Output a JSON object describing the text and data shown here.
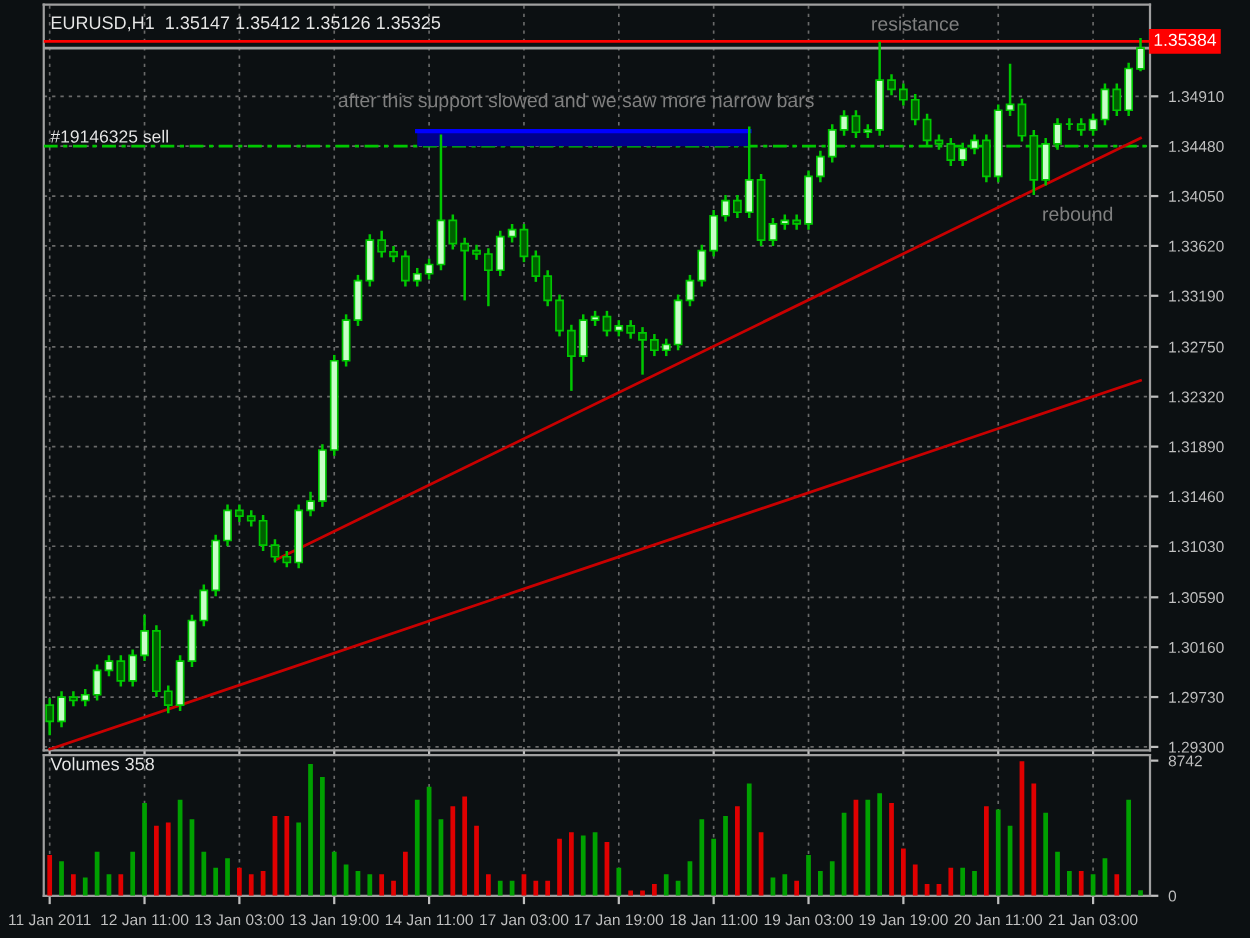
{
  "chart_data": [
    {
      "type": "candlestick",
      "title": "EURUSD,H1  1.35147 1.35412 1.35126 1.35325",
      "color": "#00c800",
      "ohlc": [
        [
          1.2966,
          1.2972,
          1.294,
          1.2952
        ],
        [
          1.2952,
          1.2978,
          1.2947,
          1.2973
        ],
        [
          1.2973,
          1.2978,
          1.2965,
          1.297
        ],
        [
          1.297,
          1.298,
          1.2965,
          1.2975
        ],
        [
          1.2975,
          1.3001,
          1.297,
          1.2996
        ],
        [
          1.2996,
          1.3009,
          1.2991,
          1.3004
        ],
        [
          1.3004,
          1.3009,
          1.2982,
          1.2987
        ],
        [
          1.2987,
          1.3014,
          1.2982,
          1.3009
        ],
        [
          1.3009,
          1.3044,
          1.3004,
          1.303
        ],
        [
          1.303,
          1.3035,
          1.2973,
          1.2978
        ],
        [
          1.2978,
          1.2983,
          1.2959,
          1.2966
        ],
        [
          1.2966,
          1.3009,
          1.2961,
          1.3004
        ],
        [
          1.3004,
          1.3044,
          1.2999,
          1.3039
        ],
        [
          1.3039,
          1.307,
          1.3034,
          1.3065
        ],
        [
          1.3065,
          1.3113,
          1.306,
          1.3108
        ],
        [
          1.3108,
          1.3139,
          1.3103,
          1.3134
        ],
        [
          1.3134,
          1.3139,
          1.3124,
          1.3129
        ],
        [
          1.3129,
          1.3134,
          1.312,
          1.3125
        ],
        [
          1.3125,
          1.313,
          1.3099,
          1.3104
        ],
        [
          1.3104,
          1.3109,
          1.3089,
          1.3094
        ],
        [
          1.3094,
          1.3099,
          1.3085,
          1.3089
        ],
        [
          1.3089,
          1.3139,
          1.3084,
          1.3134
        ],
        [
          1.3134,
          1.315,
          1.3129,
          1.3142
        ],
        [
          1.3142,
          1.3191,
          1.3137,
          1.3186
        ],
        [
          1.3186,
          1.3268,
          1.3181,
          1.3263
        ],
        [
          1.3263,
          1.3303,
          1.3258,
          1.3298
        ],
        [
          1.3298,
          1.3337,
          1.3293,
          1.3332
        ],
        [
          1.3332,
          1.3372,
          1.3327,
          1.3367
        ],
        [
          1.3367,
          1.3375,
          1.3352,
          1.3357
        ],
        [
          1.3357,
          1.3362,
          1.3348,
          1.3353
        ],
        [
          1.3353,
          1.3358,
          1.3327,
          1.3332
        ],
        [
          1.3332,
          1.3343,
          1.3327,
          1.3338
        ],
        [
          1.3338,
          1.3351,
          1.3333,
          1.3346
        ],
        [
          1.3346,
          1.3458,
          1.3341,
          1.3384
        ],
        [
          1.3384,
          1.3389,
          1.3359,
          1.3364
        ],
        [
          1.3364,
          1.3369,
          1.3315,
          1.3358
        ],
        [
          1.3358,
          1.3363,
          1.335,
          1.3355
        ],
        [
          1.3355,
          1.336,
          1.331,
          1.3341
        ],
        [
          1.3341,
          1.3375,
          1.3336,
          1.337
        ],
        [
          1.337,
          1.3381,
          1.3365,
          1.3376
        ],
        [
          1.3376,
          1.3381,
          1.3348,
          1.3353
        ],
        [
          1.3353,
          1.3358,
          1.3331,
          1.3336
        ],
        [
          1.3336,
          1.3341,
          1.331,
          1.3315
        ],
        [
          1.3315,
          1.332,
          1.3284,
          1.3289
        ],
        [
          1.3289,
          1.3294,
          1.3237,
          1.3267
        ],
        [
          1.3267,
          1.3303,
          1.3262,
          1.3298
        ],
        [
          1.3298,
          1.3306,
          1.3293,
          1.3301
        ],
        [
          1.3301,
          1.3306,
          1.3284,
          1.3289
        ],
        [
          1.3289,
          1.3298,
          1.3284,
          1.3293
        ],
        [
          1.3293,
          1.3298,
          1.3282,
          1.3287
        ],
        [
          1.3287,
          1.3292,
          1.3251,
          1.3281
        ],
        [
          1.3281,
          1.3286,
          1.3267,
          1.3272
        ],
        [
          1.3272,
          1.3282,
          1.3267,
          1.3277
        ],
        [
          1.3277,
          1.332,
          1.3272,
          1.3315
        ],
        [
          1.3315,
          1.3337,
          1.331,
          1.3332
        ],
        [
          1.3332,
          1.3363,
          1.3327,
          1.3358
        ],
        [
          1.3358,
          1.3393,
          1.3353,
          1.3388
        ],
        [
          1.3388,
          1.3406,
          1.3383,
          1.3401
        ],
        [
          1.3401,
          1.3406,
          1.3386,
          1.3391
        ],
        [
          1.3391,
          1.3465,
          1.3386,
          1.3419
        ],
        [
          1.3419,
          1.3424,
          1.3362,
          1.3367
        ],
        [
          1.3367,
          1.3386,
          1.3362,
          1.3381
        ],
        [
          1.3381,
          1.3389,
          1.3376,
          1.3384
        ],
        [
          1.3384,
          1.3389,
          1.3376,
          1.3381
        ],
        [
          1.3381,
          1.3427,
          1.3376,
          1.3422
        ],
        [
          1.3422,
          1.3444,
          1.3417,
          1.3439
        ],
        [
          1.3439,
          1.3467,
          1.3434,
          1.3462
        ],
        [
          1.3462,
          1.3479,
          1.3457,
          1.3474
        ],
        [
          1.3474,
          1.3479,
          1.3455,
          1.346
        ],
        [
          1.346,
          1.3467,
          1.3455,
          1.3462
        ],
        [
          1.3462,
          1.3538,
          1.3457,
          1.3505
        ],
        [
          1.3505,
          1.351,
          1.3492,
          1.3497
        ],
        [
          1.3497,
          1.3502,
          1.3483,
          1.3488
        ],
        [
          1.3488,
          1.3493,
          1.3466,
          1.3471
        ],
        [
          1.3471,
          1.3476,
          1.3448,
          1.3453
        ],
        [
          1.3453,
          1.3458,
          1.3445,
          1.345
        ],
        [
          1.345,
          1.3455,
          1.3431,
          1.3436
        ],
        [
          1.3436,
          1.3451,
          1.3431,
          1.3446
        ],
        [
          1.3446,
          1.3458,
          1.3441,
          1.3453
        ],
        [
          1.3453,
          1.3458,
          1.3417,
          1.3422
        ],
        [
          1.3422,
          1.3484,
          1.3417,
          1.3479
        ],
        [
          1.3479,
          1.3519,
          1.3474,
          1.3484
        ],
        [
          1.3484,
          1.3489,
          1.3452,
          1.3457
        ],
        [
          1.3457,
          1.3462,
          1.3406,
          1.3419
        ],
        [
          1.3419,
          1.3455,
          1.3414,
          1.345
        ],
        [
          1.345,
          1.3472,
          1.3445,
          1.3467
        ],
        [
          1.3467,
          1.3472,
          1.3462,
          1.3467
        ],
        [
          1.3467,
          1.3472,
          1.3457,
          1.3462
        ],
        [
          1.3462,
          1.3476,
          1.3457,
          1.3471
        ],
        [
          1.3471,
          1.3502,
          1.3466,
          1.3497
        ],
        [
          1.3497,
          1.3502,
          1.3474,
          1.3479
        ],
        [
          1.3479,
          1.352,
          1.3474,
          1.3515
        ],
        [
          1.35147,
          1.35412,
          1.35126,
          1.35325
        ]
      ],
      "series": [
        {
          "type": "line",
          "color": "#c80000",
          "values": [
            null,
            null,
            null,
            null,
            null,
            null,
            null,
            null,
            null,
            null,
            null,
            null,
            null,
            null,
            null,
            null,
            null,
            null,
            null,
            1.3091,
            null,
            null,
            null,
            null,
            null,
            null,
            null,
            null,
            null,
            null,
            null,
            null,
            null,
            null,
            null,
            null,
            null,
            null,
            null,
            null,
            null,
            null,
            null,
            null,
            null,
            null,
            null,
            null,
            null,
            null,
            null,
            null,
            null,
            null,
            null,
            null,
            null,
            null,
            null,
            null,
            null,
            null,
            null,
            null,
            null,
            null,
            null,
            null,
            null,
            null,
            null,
            null,
            null,
            null,
            null,
            null,
            null,
            null,
            null,
            null,
            null,
            null,
            null,
            null,
            null,
            null,
            null,
            null,
            null,
            null,
            null,
            null,
            1.3455
          ]
        },
        {
          "type": "line",
          "color": "#c80000",
          "values": [
            1.2928,
            null,
            null,
            null,
            null,
            null,
            null,
            null,
            null,
            null,
            null,
            null,
            null,
            null,
            null,
            null,
            null,
            null,
            null,
            null,
            null,
            null,
            null,
            null,
            null,
            null,
            null,
            null,
            null,
            null,
            null,
            null,
            null,
            null,
            null,
            null,
            null,
            null,
            null,
            null,
            null,
            null,
            null,
            null,
            null,
            null,
            null,
            null,
            null,
            null,
            null,
            null,
            null,
            null,
            null,
            null,
            null,
            null,
            null,
            null,
            null,
            null,
            null,
            null,
            null,
            null,
            null,
            null,
            null,
            null,
            null,
            null,
            null,
            null,
            null,
            null,
            null,
            null,
            null,
            null,
            null,
            null,
            null,
            null,
            null,
            null,
            null,
            null,
            null,
            null,
            null,
            null,
            1.3246
          ]
        },
        {
          "type": "line",
          "color": "#0000ff",
          "values": [
            null,
            null,
            null,
            null,
            null,
            null,
            null,
            null,
            null,
            null,
            null,
            null,
            null,
            null,
            null,
            null,
            null,
            null,
            null,
            null,
            null,
            null,
            null,
            null,
            null,
            null,
            null,
            null,
            null,
            null,
            null,
            1.3461,
            1.3461,
            1.3461,
            1.3461,
            1.3461,
            1.3461,
            1.3461,
            1.3461,
            1.3461,
            1.3461,
            1.3461,
            1.3461,
            1.3461,
            1.3461,
            1.3461,
            1.3461,
            1.3461,
            1.3461,
            1.3461,
            1.3461,
            1.3461,
            1.3461,
            1.3461,
            1.3461,
            1.3461,
            1.3461,
            1.3461,
            1.3461,
            1.3461,
            null,
            null,
            null,
            null,
            null,
            null,
            null,
            null,
            null,
            null,
            null,
            null,
            null,
            null,
            null,
            null,
            null,
            null,
            null,
            null,
            null,
            null,
            null,
            null,
            null,
            null,
            null,
            null,
            null,
            null,
            null,
            null,
            null
          ],
          "upper": [
            null,
            null,
            null,
            null,
            null,
            null,
            null,
            null,
            null,
            null,
            null,
            null,
            null,
            null,
            null,
            null,
            null,
            null,
            null,
            null,
            null,
            null,
            null,
            null,
            null,
            null,
            null,
            null,
            null,
            null,
            null,
            1.3461,
            1.3461,
            1.3461,
            1.3461,
            1.3461,
            1.3461,
            1.3461,
            1.3461,
            1.3461,
            1.3461,
            1.3461,
            1.3461,
            1.3461,
            1.3461,
            1.3461,
            1.3461,
            1.3461,
            1.3461,
            1.3461,
            1.3461,
            1.3461,
            1.3461,
            1.3461,
            1.3461,
            1.3461,
            1.3461,
            1.3461,
            1.3461,
            1.3461,
            null,
            null,
            null,
            null,
            null,
            null,
            null,
            null,
            null,
            null,
            null,
            null,
            null,
            null,
            null,
            null,
            null,
            null,
            null,
            null,
            null,
            null,
            null,
            null,
            null,
            null,
            null,
            null,
            null,
            null,
            null,
            null,
            null
          ],
          "lower": [
            null,
            null,
            null,
            null,
            null,
            null,
            null,
            null,
            null,
            null,
            null,
            null,
            null,
            null,
            null,
            null,
            null,
            null,
            null,
            null,
            null,
            null,
            null,
            null,
            null,
            null,
            null,
            null,
            null,
            null,
            null,
            1.3448,
            1.3448,
            1.3448,
            1.3448,
            1.3448,
            1.3448,
            1.3448,
            1.3448,
            1.3448,
            1.3448,
            1.3448,
            1.3448,
            1.3448,
            1.3448,
            1.3448,
            1.3448,
            1.3448,
            1.3448,
            1.3448,
            1.3448,
            1.3448,
            1.3448,
            1.3448,
            1.3448,
            1.3448,
            1.3448,
            1.3448,
            1.3448,
            1.3448,
            null,
            null,
            null,
            null,
            null,
            null,
            null,
            null,
            null,
            null,
            null,
            null,
            null,
            null,
            null,
            null,
            null,
            null,
            null,
            null,
            null,
            null,
            null,
            null,
            null,
            null,
            null,
            null,
            null,
            null,
            null,
            null,
            null
          ]
        }
      ],
      "ylim": [
        1.2927,
        1.357
      ],
      "yticks": [
        {
          "value": 1.293,
          "label": "1.29300"
        },
        {
          "value": 1.2973,
          "label": "1.29730"
        },
        {
          "value": 1.3016,
          "label": "1.30160"
        },
        {
          "value": 1.3059,
          "label": "1.30590"
        },
        {
          "value": 1.3103,
          "label": "1.31030"
        },
        {
          "value": 1.3146,
          "label": "1.31460"
        },
        {
          "value": 1.3189,
          "label": "1.31890"
        },
        {
          "value": 1.3232,
          "label": "1.32320"
        },
        {
          "value": 1.3275,
          "label": "1.32750"
        },
        {
          "value": 1.3319,
          "label": "1.33190"
        },
        {
          "value": 1.3362,
          "label": "1.33620"
        },
        {
          "value": 1.3405,
          "label": "1.34050"
        },
        {
          "value": 1.3448,
          "label": "1.34480"
        },
        {
          "value": 1.3491,
          "label": "1.34910"
        }
      ],
      "grid": true,
      "tick_labels": "y",
      "ref_lines": [
        {
          "axis": "y",
          "value": 1.35384,
          "label": "1.35384",
          "color": "#ff0000"
        },
        {
          "axis": "y",
          "value": 1.35325,
          "color": "#a0a0a0"
        },
        {
          "axis": "y",
          "value": 1.3448,
          "label": "#19146325 sell",
          "color": "#00c800",
          "line_style": "dashed"
        }
      ],
      "annotations": [
        "after this support slowed and we saw more narrow bars",
        "resistance",
        "rebound"
      ]
    },
    {
      "type": "bar",
      "title": "Volumes 358",
      "categories": [
        "11 Jan 2011",
        null,
        null,
        null,
        null,
        null,
        null,
        null,
        "12 Jan 11:00",
        null,
        null,
        null,
        null,
        null,
        null,
        null,
        "13 Jan 03:00",
        null,
        null,
        null,
        null,
        null,
        null,
        null,
        "13 Jan 19:00",
        null,
        null,
        null,
        null,
        null,
        null,
        null,
        "14 Jan 11:00",
        null,
        null,
        null,
        null,
        null,
        null,
        null,
        "17 Jan 03:00",
        null,
        null,
        null,
        null,
        null,
        null,
        null,
        "17 Jan 19:00",
        null,
        null,
        null,
        null,
        null,
        null,
        null,
        "18 Jan 11:00",
        null,
        null,
        null,
        null,
        null,
        null,
        null,
        "19 Jan 03:00",
        null,
        null,
        null,
        null,
        null,
        null,
        null,
        "19 Jan 19:00",
        null,
        null,
        null,
        null,
        null,
        null,
        null,
        "20 Jan 11:00",
        null,
        null,
        null,
        null,
        null,
        null,
        null,
        "21 Jan 03:00",
        null,
        null,
        null,
        null
      ],
      "values": [
        2646,
        2226,
        1386,
        1176,
        2856,
        1386,
        1386,
        2856,
        6006,
        4536,
        4746,
        6216,
        4956,
        2856,
        1806,
        2436,
        1806,
        1386,
        1596,
        5166,
        5166,
        4746,
        8526,
        7686,
        2856,
        2016,
        1596,
        1386,
        1386,
        966,
        2856,
        6216,
        7056,
        4956,
        5796,
        6426,
        4536,
        1386,
        966,
        966,
        1386,
        966,
        966,
        3696,
        4116,
        3906,
        4116,
        3486,
        1806,
        336,
        336,
        756,
        1386,
        966,
        2226,
        4956,
        3696,
        5166,
        5796,
        7266,
        4116,
        1176,
        1386,
        966,
        2646,
        1596,
        2226,
        5376,
        6216,
        6216,
        6636,
        6006,
        3066,
        2016,
        756,
        756,
        1806,
        1806,
        1596,
        5796,
        5586,
        4536,
        8700,
        7266,
        5376,
        2856,
        1596,
        1596,
        1386,
        2436,
        1386,
        6216,
        358
      ],
      "colors": [
        "#e00000",
        "#00a000",
        "#e00000",
        "#00a000",
        "#00a000",
        "#00a000",
        "#e00000",
        "#00a000",
        "#00a000",
        "#e00000",
        "#e00000",
        "#00a000",
        "#00a000",
        "#00a000",
        "#00a000",
        "#00a000",
        "#e00000",
        "#e00000",
        "#e00000",
        "#e00000",
        "#e00000",
        "#00a000",
        "#00a000",
        "#00a000",
        "#00a000",
        "#00a000",
        "#00a000",
        "#00a000",
        "#e00000",
        "#e00000",
        "#e00000",
        "#00a000",
        "#00a000",
        "#00a000",
        "#e00000",
        "#e00000",
        "#e00000",
        "#e00000",
        "#00a000",
        "#00a000",
        "#e00000",
        "#e00000",
        "#e00000",
        "#e00000",
        "#e00000",
        "#00a000",
        "#00a000",
        "#e00000",
        "#00a000",
        "#e00000",
        "#e00000",
        "#e00000",
        "#00a000",
        "#00a000",
        "#00a000",
        "#00a000",
        "#00a000",
        "#00a000",
        "#e00000",
        "#00a000",
        "#e00000",
        "#00a000",
        "#00a000",
        "#e00000",
        "#00a000",
        "#00a000",
        "#00a000",
        "#00a000",
        "#e00000",
        "#00a000",
        "#00a000",
        "#e00000",
        "#e00000",
        "#e00000",
        "#e00000",
        "#e00000",
        "#e00000",
        "#00a000",
        "#00a000",
        "#e00000",
        "#00a000",
        "#00a000",
        "#e00000",
        "#e00000",
        "#00a000",
        "#00a000",
        "#00a000",
        "#e00000",
        "#00a000",
        "#00a000",
        "#e00000",
        "#00a000",
        "#00a000"
      ],
      "ylim": [
        0,
        9100
      ],
      "yticks": [
        0,
        8742
      ],
      "grid": "x"
    }
  ]
}
